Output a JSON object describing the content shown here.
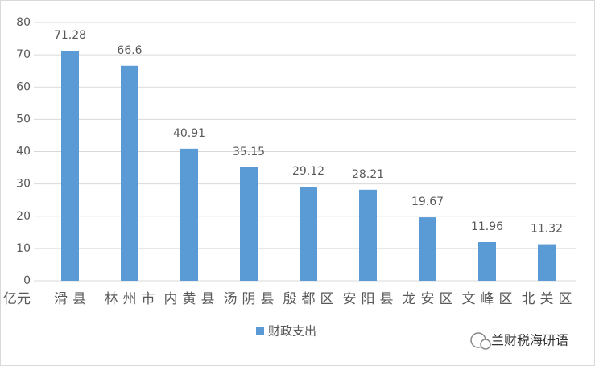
{
  "chart_data": {
    "type": "bar",
    "y_label": "亿元",
    "categories": [
      "滑县",
      "林州市",
      "内黄县",
      "汤阴县",
      "殷都区",
      "安阳县",
      "龙安区",
      "文峰区",
      "北关区"
    ],
    "series": [
      {
        "name": "财政支出",
        "color": "#5b9bd5",
        "values": [
          71.28,
          66.6,
          40.91,
          35.15,
          29.12,
          28.21,
          19.67,
          11.96,
          11.32
        ]
      }
    ],
    "ylim": [
      0,
      80
    ],
    "yticks": [
      0,
      10,
      20,
      30,
      40,
      50,
      60,
      70,
      80
    ],
    "grid": true,
    "legend": "bottom",
    "watermark": "兰财税海研语"
  }
}
